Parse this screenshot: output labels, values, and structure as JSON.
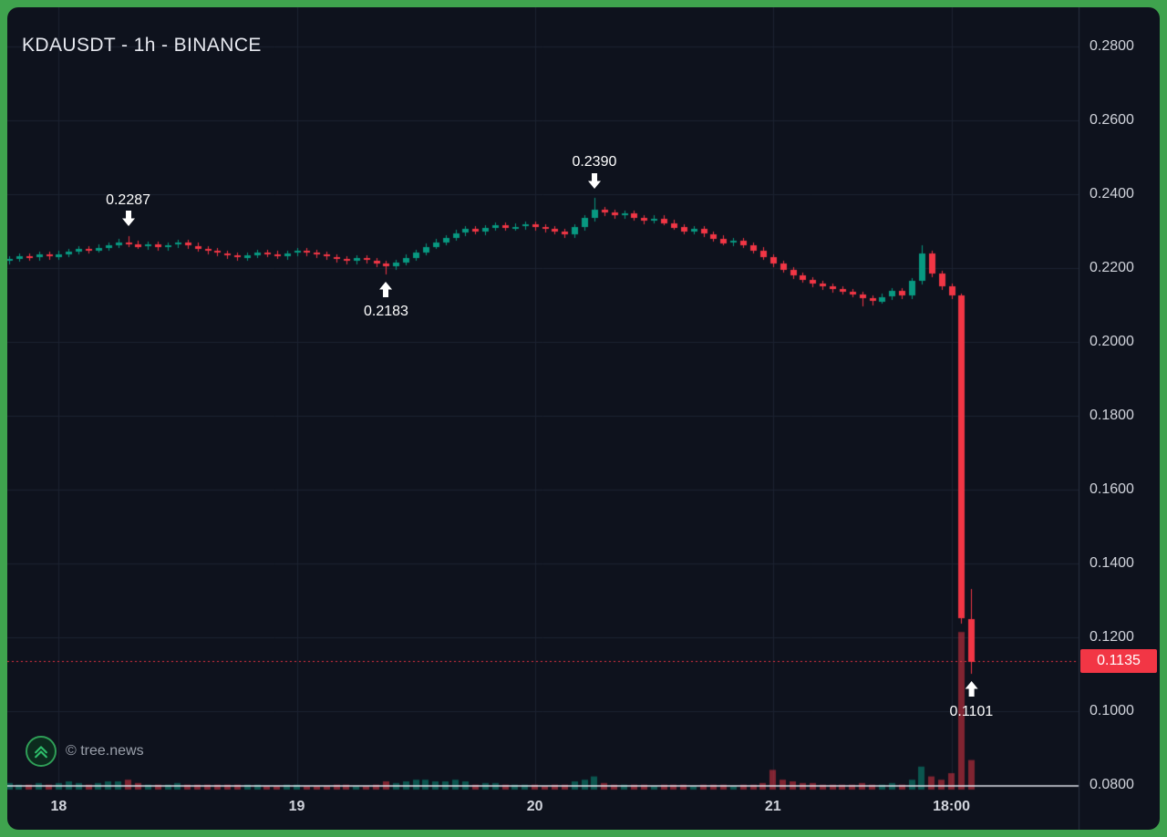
{
  "header": {
    "symbol_title": "KDAUSDT - 1h - BINANCE"
  },
  "footer": {
    "copyright": "© tree.news"
  },
  "icons": {
    "watermark_logo": "chevrons-up-circle-icon",
    "annotation_high_marker": "arrow-down-icon",
    "annotation_low_marker": "arrow-up-icon"
  },
  "colors": {
    "background": "#0e121d",
    "border": "#3fa34e",
    "grid": "#1d2332",
    "axis_line": "#2a3042",
    "separator": "#e3e6ee",
    "up": "#089981",
    "down": "#f23645",
    "vol_up": "rgba(8,153,129,0.5)",
    "vol_down": "rgba(242,54,69,0.5)",
    "text_primary": "#d1d4dc",
    "text_title": "#e6e8ef",
    "text_muted": "#9aa0ab",
    "annotation_text": "#ffffff",
    "price_label_bg": "#f23645",
    "price_label_text": "#ffffff"
  },
  "chart_data": {
    "type": "candlestick",
    "symbol": "KDAUSDT",
    "interval": "1h",
    "exchange": "BINANCE",
    "title": "KDAUSDT - 1h - BINANCE",
    "grid": true,
    "legend_position": "none",
    "price_axis": {
      "min": 0.08,
      "max": 0.28,
      "tick_step": 0.02,
      "tick_labels": [
        "0.2800",
        "0.2600",
        "0.2400",
        "0.2200",
        "0.2000",
        "0.1800",
        "0.1600",
        "0.1400",
        "0.1200",
        "0.1000",
        "0.0800"
      ]
    },
    "time_axis": {
      "ticks": [
        {
          "label": "18",
          "index": 5
        },
        {
          "label": "19",
          "index": 29
        },
        {
          "label": "20",
          "index": 53
        },
        {
          "label": "21",
          "index": 77
        },
        {
          "label": "18:00",
          "index": 95
        }
      ]
    },
    "last_price": {
      "value": 0.1135,
      "label": "0.1135"
    },
    "annotations": [
      {
        "label": "0.2287",
        "index": 12,
        "price": 0.2287,
        "marks": "high",
        "arrow": "down"
      },
      {
        "label": "0.2183",
        "index": 38,
        "price": 0.2183,
        "marks": "low",
        "arrow": "up"
      },
      {
        "label": "0.2390",
        "index": 59,
        "price": 0.239,
        "marks": "high",
        "arrow": "down"
      },
      {
        "label": "0.1101",
        "index": 97,
        "price": 0.1101,
        "marks": "low",
        "arrow": "up"
      }
    ],
    "candles_format": [
      "open",
      "high",
      "low",
      "close",
      "volume_rel"
    ],
    "candles": [
      [
        0.222,
        0.2233,
        0.2212,
        0.2225,
        4
      ],
      [
        0.2225,
        0.224,
        0.2217,
        0.2232,
        3
      ],
      [
        0.2232,
        0.224,
        0.222,
        0.2228,
        3
      ],
      [
        0.2228,
        0.2244,
        0.222,
        0.2236,
        4
      ],
      [
        0.2236,
        0.2244,
        0.2222,
        0.223,
        3
      ],
      [
        0.223,
        0.2246,
        0.2222,
        0.2238,
        4
      ],
      [
        0.2238,
        0.2253,
        0.223,
        0.2245,
        5
      ],
      [
        0.2245,
        0.226,
        0.2237,
        0.2252,
        4
      ],
      [
        0.2252,
        0.226,
        0.224,
        0.2248,
        3
      ],
      [
        0.2248,
        0.2263,
        0.224,
        0.2255,
        4
      ],
      [
        0.2255,
        0.227,
        0.2247,
        0.2262,
        5
      ],
      [
        0.2262,
        0.2278,
        0.2254,
        0.227,
        5
      ],
      [
        0.227,
        0.2287,
        0.2257,
        0.2265,
        6
      ],
      [
        0.2265,
        0.2273,
        0.225,
        0.2258,
        4
      ],
      [
        0.2258,
        0.2272,
        0.225,
        0.2264,
        3
      ],
      [
        0.2264,
        0.2272,
        0.2248,
        0.2256,
        3
      ],
      [
        0.2256,
        0.227,
        0.2248,
        0.2262,
        3
      ],
      [
        0.2262,
        0.2276,
        0.2254,
        0.2268,
        4
      ],
      [
        0.2268,
        0.2276,
        0.2252,
        0.226,
        3
      ],
      [
        0.226,
        0.2268,
        0.2244,
        0.2252,
        3
      ],
      [
        0.2252,
        0.226,
        0.2238,
        0.2246,
        3
      ],
      [
        0.2246,
        0.2254,
        0.2232,
        0.224,
        3
      ],
      [
        0.224,
        0.2248,
        0.2226,
        0.2234,
        3
      ],
      [
        0.2234,
        0.2242,
        0.222,
        0.2228,
        3
      ],
      [
        0.2228,
        0.2243,
        0.222,
        0.2235,
        3
      ],
      [
        0.2235,
        0.225,
        0.2227,
        0.2242,
        3
      ],
      [
        0.2242,
        0.225,
        0.223,
        0.2238,
        2
      ],
      [
        0.2238,
        0.2246,
        0.2224,
        0.2232,
        2
      ],
      [
        0.2232,
        0.2248,
        0.2224,
        0.224,
        3
      ],
      [
        0.224,
        0.2254,
        0.2232,
        0.2246,
        3
      ],
      [
        0.2246,
        0.2254,
        0.2233,
        0.2241,
        2
      ],
      [
        0.2241,
        0.2249,
        0.2228,
        0.2236,
        2
      ],
      [
        0.2236,
        0.2244,
        0.2222,
        0.223,
        2
      ],
      [
        0.223,
        0.2238,
        0.2216,
        0.2224,
        3
      ],
      [
        0.2224,
        0.2232,
        0.221,
        0.2218,
        3
      ],
      [
        0.2218,
        0.2234,
        0.221,
        0.2226,
        2
      ],
      [
        0.2226,
        0.2234,
        0.2212,
        0.222,
        2
      ],
      [
        0.222,
        0.2228,
        0.2204,
        0.2212,
        3
      ],
      [
        0.2212,
        0.222,
        0.2183,
        0.2205,
        5
      ],
      [
        0.2205,
        0.2223,
        0.2197,
        0.2215,
        4
      ],
      [
        0.2215,
        0.2236,
        0.2207,
        0.2228,
        5
      ],
      [
        0.2228,
        0.225,
        0.222,
        0.2242,
        6
      ],
      [
        0.2242,
        0.2266,
        0.2234,
        0.2258,
        6
      ],
      [
        0.2258,
        0.2278,
        0.225,
        0.227,
        5
      ],
      [
        0.227,
        0.229,
        0.2262,
        0.2282,
        5
      ],
      [
        0.2282,
        0.2303,
        0.2274,
        0.2295,
        6
      ],
      [
        0.2295,
        0.2313,
        0.2287,
        0.2305,
        5
      ],
      [
        0.2305,
        0.2313,
        0.229,
        0.2298,
        3
      ],
      [
        0.2298,
        0.2316,
        0.229,
        0.2308,
        4
      ],
      [
        0.2308,
        0.2323,
        0.23,
        0.2315,
        4
      ],
      [
        0.2315,
        0.2323,
        0.23,
        0.2308,
        3
      ],
      [
        0.2308,
        0.232,
        0.23,
        0.2312,
        3
      ],
      [
        0.2312,
        0.2326,
        0.2304,
        0.2318,
        3
      ],
      [
        0.2318,
        0.2326,
        0.2302,
        0.231,
        3
      ],
      [
        0.231,
        0.2318,
        0.2297,
        0.2305,
        2
      ],
      [
        0.2305,
        0.2313,
        0.229,
        0.2298,
        3
      ],
      [
        0.2298,
        0.2306,
        0.2282,
        0.229,
        3
      ],
      [
        0.229,
        0.2318,
        0.2282,
        0.231,
        5
      ],
      [
        0.231,
        0.2343,
        0.2302,
        0.2335,
        6
      ],
      [
        0.2335,
        0.239,
        0.2327,
        0.2358,
        8
      ],
      [
        0.2358,
        0.2366,
        0.2342,
        0.235,
        4
      ],
      [
        0.235,
        0.2358,
        0.2334,
        0.2342,
        3
      ],
      [
        0.2342,
        0.2356,
        0.2334,
        0.2348,
        3
      ],
      [
        0.2348,
        0.2356,
        0.2328,
        0.2336,
        3
      ],
      [
        0.2336,
        0.2344,
        0.232,
        0.2328,
        3
      ],
      [
        0.2328,
        0.2342,
        0.232,
        0.2334,
        2
      ],
      [
        0.2334,
        0.2342,
        0.2314,
        0.2322,
        3
      ],
      [
        0.2322,
        0.233,
        0.2302,
        0.231,
        3
      ],
      [
        0.231,
        0.2318,
        0.229,
        0.2298,
        3
      ],
      [
        0.2298,
        0.2313,
        0.229,
        0.2305,
        2
      ],
      [
        0.2305,
        0.2313,
        0.2284,
        0.2292,
        3
      ],
      [
        0.2292,
        0.23,
        0.2272,
        0.228,
        3
      ],
      [
        0.228,
        0.2288,
        0.226,
        0.2268,
        3
      ],
      [
        0.2268,
        0.2282,
        0.226,
        0.2274,
        2
      ],
      [
        0.2274,
        0.2282,
        0.2254,
        0.2262,
        3
      ],
      [
        0.2262,
        0.227,
        0.224,
        0.2248,
        3
      ],
      [
        0.2248,
        0.2256,
        0.2222,
        0.223,
        4
      ],
      [
        0.223,
        0.2238,
        0.2204,
        0.2212,
        12
      ],
      [
        0.2212,
        0.222,
        0.2187,
        0.2195,
        6
      ],
      [
        0.2195,
        0.2203,
        0.2172,
        0.218,
        5
      ],
      [
        0.218,
        0.2188,
        0.216,
        0.2168,
        4
      ],
      [
        0.2168,
        0.2176,
        0.215,
        0.2158,
        4
      ],
      [
        0.2158,
        0.2166,
        0.2142,
        0.215,
        3
      ],
      [
        0.215,
        0.2158,
        0.2134,
        0.2142,
        3
      ],
      [
        0.2142,
        0.215,
        0.2127,
        0.2135,
        3
      ],
      [
        0.2135,
        0.2143,
        0.212,
        0.2128,
        3
      ],
      [
        0.2128,
        0.2136,
        0.2096,
        0.2118,
        4
      ],
      [
        0.2118,
        0.2126,
        0.21,
        0.211,
        3
      ],
      [
        0.211,
        0.213,
        0.2102,
        0.2122,
        3
      ],
      [
        0.2122,
        0.2146,
        0.2114,
        0.2138,
        4
      ],
      [
        0.2138,
        0.2146,
        0.2117,
        0.2125,
        3
      ],
      [
        0.2125,
        0.2173,
        0.2117,
        0.2165,
        6
      ],
      [
        0.2165,
        0.2262,
        0.2157,
        0.224,
        14
      ],
      [
        0.224,
        0.2248,
        0.2177,
        0.2185,
        8
      ],
      [
        0.2185,
        0.2193,
        0.2142,
        0.215,
        6
      ],
      [
        0.215,
        0.2158,
        0.2117,
        0.2125,
        10
      ],
      [
        0.2125,
        0.213,
        0.1235,
        0.125,
        96
      ],
      [
        0.125,
        0.133,
        0.1101,
        0.1135,
        18
      ]
    ]
  }
}
